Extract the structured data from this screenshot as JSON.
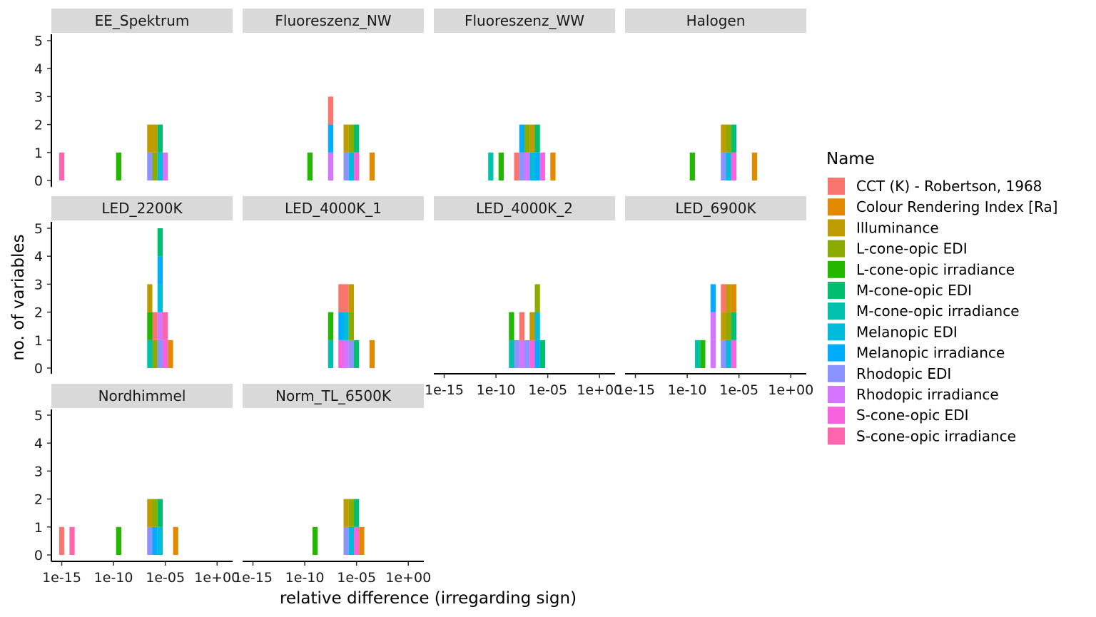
{
  "chart_data": {
    "type": "bar",
    "subtype": "faceted stacked histogram",
    "xlabel": "relative difference (irregarding sign)",
    "ylabel": "no. of variables",
    "x_scale": "log10",
    "x_ticks": [
      "1e-15",
      "1e-10",
      "1e-05",
      "1e+00"
    ],
    "x_tick_exponents": [
      -15,
      -10,
      -5,
      0
    ],
    "xlim_log10": [
      -16,
      1.5
    ],
    "bin_width_log10": 0.5,
    "y_ticks": [
      "0",
      "1",
      "2",
      "3",
      "4",
      "5"
    ],
    "ylim": [
      0,
      5
    ],
    "grid": false,
    "legend_position": "right",
    "legend": {
      "title": "Name",
      "entries": [
        {
          "name": "CCT (K) - Robertson, 1968",
          "color": "#F8766D"
        },
        {
          "name": "Colour Rendering Index [Ra]",
          "color": "#E18A00"
        },
        {
          "name": "Illuminance",
          "color": "#BE9C00"
        },
        {
          "name": "L-cone-opic EDI",
          "color": "#8CAB00"
        },
        {
          "name": "L-cone-opic irradiance",
          "color": "#24B700"
        },
        {
          "name": "M-cone-opic EDI",
          "color": "#00BE70"
        },
        {
          "name": "M-cone-opic irradiance",
          "color": "#00C1AB"
        },
        {
          "name": "Melanopic EDI",
          "color": "#00BBDA"
        },
        {
          "name": "Melanopic irradiance",
          "color": "#00ACFC"
        },
        {
          "name": "Rhodopic EDI",
          "color": "#8B93FF"
        },
        {
          "name": "Rhodopic irradiance",
          "color": "#D575FE"
        },
        {
          "name": "S-cone-opic EDI",
          "color": "#F962DD"
        },
        {
          "name": "S-cone-opic irradiance",
          "color": "#FF65AC"
        }
      ]
    },
    "panels": [
      {
        "name": "EE_Spektrum",
        "bars": [
          {
            "x": -15,
            "stack": [
              12
            ]
          },
          {
            "x": -9.5,
            "stack": [
              4
            ]
          },
          {
            "x": -6.5,
            "stack": [
              9,
              2
            ]
          },
          {
            "x": -6,
            "stack": [
              3,
              2
            ]
          },
          {
            "x": -5.5,
            "stack": [
              7,
              5
            ]
          },
          {
            "x": -5,
            "stack": [
              10
            ]
          }
        ]
      },
      {
        "name": "Fluoreszenz_NW",
        "bars": [
          {
            "x": -9.5,
            "stack": [
              4
            ]
          },
          {
            "x": -7.5,
            "stack": [
              10,
              8,
              0
            ]
          },
          {
            "x": -6,
            "stack": [
              9,
              2
            ]
          },
          {
            "x": -5.5,
            "stack": [
              7,
              3
            ]
          },
          {
            "x": -5,
            "stack": [
              11,
              5
            ]
          },
          {
            "x": -3.5,
            "stack": [
              1
            ]
          }
        ]
      },
      {
        "name": "Fluoreszenz_WW",
        "bars": [
          {
            "x": -10.5,
            "stack": [
              6
            ]
          },
          {
            "x": -9.5,
            "stack": [
              4
            ]
          },
          {
            "x": -8,
            "stack": [
              0
            ]
          },
          {
            "x": -7.5,
            "stack": [
              9,
              8
            ]
          },
          {
            "x": -7,
            "stack": [
              10,
              3
            ]
          },
          {
            "x": -6.5,
            "stack": [
              7,
              2
            ]
          },
          {
            "x": -6,
            "stack": [
              8,
              5
            ]
          },
          {
            "x": -5.5,
            "stack": [
              11
            ]
          },
          {
            "x": -4.5,
            "stack": [
              1
            ]
          }
        ]
      },
      {
        "name": "Halogen",
        "bars": [
          {
            "x": -9.5,
            "stack": [
              4
            ]
          },
          {
            "x": -6.5,
            "stack": [
              9,
              2
            ]
          },
          {
            "x": -6,
            "stack": [
              7,
              3
            ]
          },
          {
            "x": -5.5,
            "stack": [
              11,
              5
            ]
          },
          {
            "x": -3.5,
            "stack": [
              1
            ]
          }
        ]
      },
      {
        "name": "LED_2200K",
        "bars": [
          {
            "x": -6.5,
            "stack": [
              6,
              4,
              2
            ]
          },
          {
            "x": -6,
            "stack": [
              3,
              0
            ]
          },
          {
            "x": -5.5,
            "stack": [
              9,
              10,
              7,
              8,
              5
            ]
          },
          {
            "x": -5,
            "stack": [
              11,
              12
            ]
          },
          {
            "x": -4.5,
            "stack": [
              1
            ]
          }
        ]
      },
      {
        "name": "LED_4000K_1",
        "bars": [
          {
            "x": -7.5,
            "stack": [
              6,
              4
            ]
          },
          {
            "x": -6.5,
            "stack": [
              11,
              8,
              0
            ]
          },
          {
            "x": -6,
            "stack": [
              10,
              7,
              0
            ]
          },
          {
            "x": -5.5,
            "stack": [
              9,
              3,
              2
            ]
          },
          {
            "x": -5,
            "stack": [
              5
            ]
          },
          {
            "x": -3.5,
            "stack": [
              1
            ]
          }
        ]
      },
      {
        "name": "LED_4000K_2",
        "bars": [
          {
            "x": -8.5,
            "stack": [
              6,
              4
            ]
          },
          {
            "x": -8,
            "stack": [
              9
            ]
          },
          {
            "x": -7.5,
            "stack": [
              10,
              0
            ]
          },
          {
            "x": -7,
            "stack": [
              9
            ]
          },
          {
            "x": -6.5,
            "stack": [
              11,
              2
            ]
          },
          {
            "x": -6,
            "stack": [
              8,
              7,
              3
            ]
          },
          {
            "x": -5.5,
            "stack": [
              5
            ]
          }
        ]
      },
      {
        "name": "LED_6900K",
        "bars": [
          {
            "x": -9,
            "stack": [
              6
            ]
          },
          {
            "x": -8.5,
            "stack": [
              4
            ]
          },
          {
            "x": -7.5,
            "stack": [
              10,
              10,
              8
            ]
          },
          {
            "x": -6.5,
            "stack": [
              9,
              2,
              0
            ]
          },
          {
            "x": -6,
            "stack": [
              7,
              3,
              2
            ]
          },
          {
            "x": -5.5,
            "stack": [
              11,
              5,
              1
            ]
          }
        ]
      },
      {
        "name": "Nordhimmel",
        "bars": [
          {
            "x": -15,
            "stack": [
              0
            ]
          },
          {
            "x": -14,
            "stack": [
              12
            ]
          },
          {
            "x": -9.5,
            "stack": [
              4
            ]
          },
          {
            "x": -6.5,
            "stack": [
              9,
              2
            ]
          },
          {
            "x": -6,
            "stack": [
              8,
              3
            ]
          },
          {
            "x": -5.5,
            "stack": [
              7,
              5
            ]
          },
          {
            "x": -4,
            "stack": [
              1
            ]
          }
        ]
      },
      {
        "name": "Norm_TL_6500K",
        "bars": [
          {
            "x": -9,
            "stack": [
              4
            ]
          },
          {
            "x": -6,
            "stack": [
              9,
              2
            ]
          },
          {
            "x": -5.5,
            "stack": [
              7,
              3
            ]
          },
          {
            "x": -5,
            "stack": [
              11,
              5
            ]
          },
          {
            "x": -4.5,
            "stack": [
              1
            ]
          }
        ]
      }
    ]
  }
}
